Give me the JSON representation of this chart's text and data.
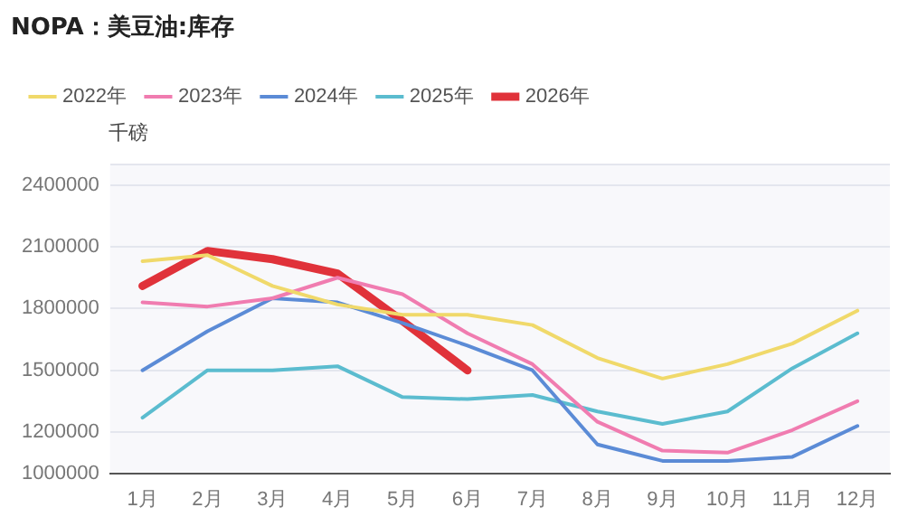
{
  "chart_data": {
    "type": "line",
    "title": "NOPA：美豆油:库存",
    "ylabel": "千磅",
    "categories": [
      "1月",
      "2月",
      "3月",
      "4月",
      "5月",
      "6月",
      "7月",
      "8月",
      "9月",
      "10月",
      "11月",
      "12月"
    ],
    "series": [
      {
        "name": "2022年",
        "color": "#f0d96a",
        "values": [
          2030000,
          2060000,
          1910000,
          1820000,
          1770000,
          1770000,
          1720000,
          1560000,
          1460000,
          1530000,
          1630000,
          1790000
        ]
      },
      {
        "name": "2023年",
        "color": "#f07cb0",
        "values": [
          1830000,
          1810000,
          1850000,
          1950000,
          1870000,
          1680000,
          1530000,
          1250000,
          1110000,
          1100000,
          1210000,
          1350000
        ]
      },
      {
        "name": "2024年",
        "color": "#5b8bd6",
        "values": [
          1500000,
          1690000,
          1850000,
          1830000,
          1730000,
          1620000,
          1500000,
          1140000,
          1060000,
          1060000,
          1080000,
          1230000
        ]
      },
      {
        "name": "2025年",
        "color": "#5bbccf",
        "values": [
          1270000,
          1500000,
          1500000,
          1520000,
          1370000,
          1360000,
          1380000,
          1300000,
          1240000,
          1300000,
          1510000,
          1680000
        ]
      },
      {
        "name": "2026年",
        "color": "#e0323a",
        "values": [
          1910000,
          2080000,
          2040000,
          1970000,
          1740000,
          1500000,
          null,
          null,
          null,
          null,
          null,
          null
        ]
      }
    ],
    "ylim": [
      1000000,
      2500000
    ],
    "yticks": [
      1000000,
      1200000,
      1500000,
      1800000,
      2100000,
      2400000,
      {
        "value": 2500000,
        "label": null
      }
    ],
    "grid": "y",
    "legend": "top left",
    "marker": "none",
    "line_style": "solid"
  }
}
